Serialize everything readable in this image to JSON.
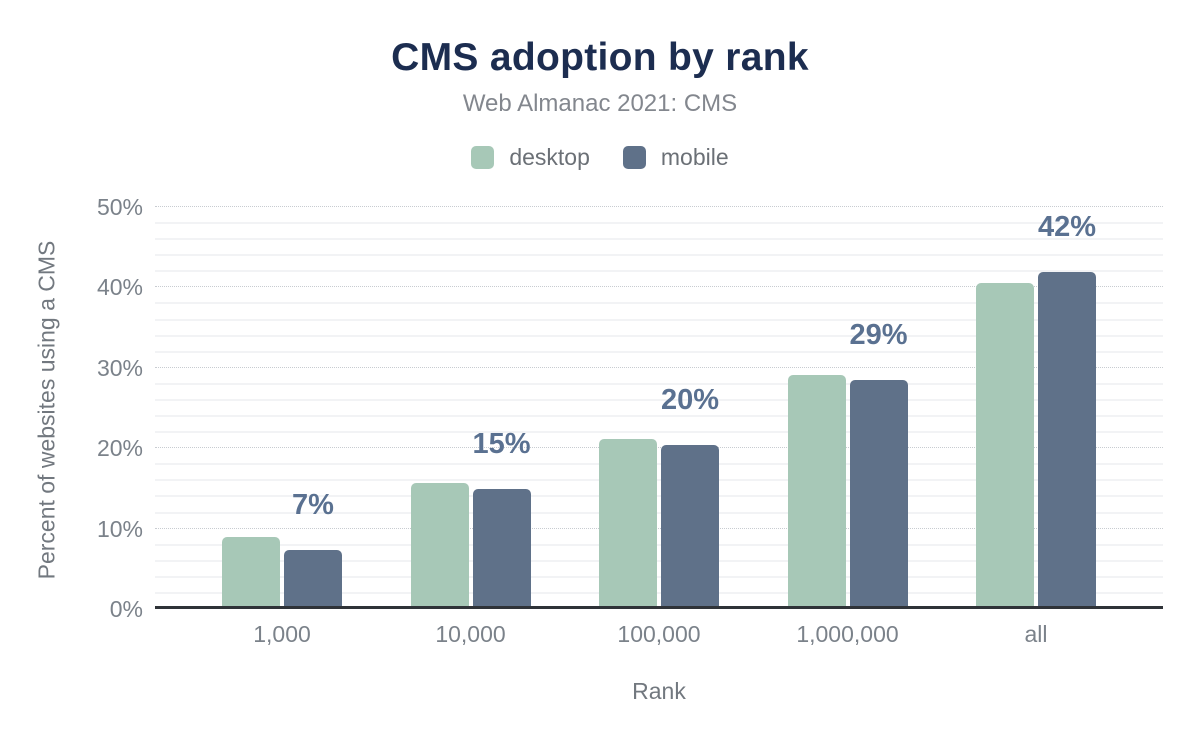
{
  "chart_data": {
    "type": "bar",
    "title": "CMS adoption by rank",
    "subtitle": "Web Almanac 2021: CMS",
    "categories": [
      "1,000",
      "10,000",
      "100,000",
      "1,000,000",
      "all"
    ],
    "series": [
      {
        "name": "desktop",
        "color": "#a7c8b7",
        "values": [
          9.0,
          15.7,
          21.2,
          29.1,
          40.5
        ]
      },
      {
        "name": "mobile",
        "color": "#5f7189",
        "values": [
          7.3,
          14.9,
          20.4,
          28.5,
          41.9
        ]
      }
    ],
    "bar_labels": {
      "series": "mobile",
      "labels": [
        "7%",
        "15%",
        "20%",
        "29%",
        "42%"
      ]
    },
    "xlabel": "Rank",
    "ylabel": "Percent of websites using a CMS",
    "ylim": [
      0,
      50
    ],
    "yticks": [
      {
        "value": 0,
        "label": "0%"
      },
      {
        "value": 10,
        "label": "10%"
      },
      {
        "value": 20,
        "label": "20%"
      },
      {
        "value": 30,
        "label": "30%"
      },
      {
        "value": 40,
        "label": "40%"
      },
      {
        "value": 50,
        "label": "50%"
      }
    ],
    "grid": {
      "major_step": 10,
      "major_style": "dotted",
      "minor_step": 2,
      "minor_style": "solid"
    },
    "legend_position": "top"
  },
  "style": {
    "background": "#ffffff",
    "title_color": "#1c2d50",
    "subtitle_color": "#83878e",
    "legend_text_color": "#6b7076",
    "tick_color": "#7b828a",
    "axis_title_color": "#72787f",
    "data_label_color": "#5a7191",
    "axis_line_color": "#2f3338",
    "major_grid_color": "#c8ccd1",
    "minor_grid_color": "#f2f3f5"
  }
}
